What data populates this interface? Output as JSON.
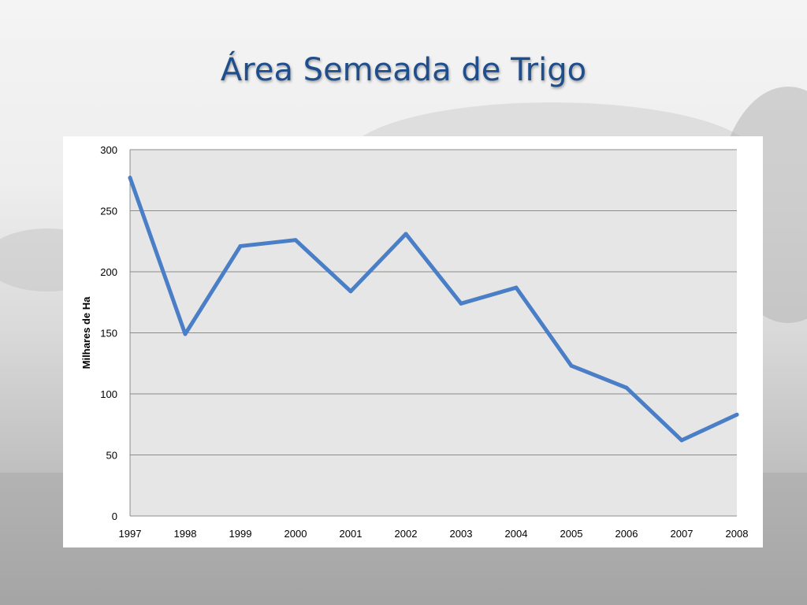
{
  "slide": {
    "title": "Área Semeada de Trigo"
  },
  "colors": {
    "title": "#1f4e8c",
    "series": "#4a7ec6",
    "plot_bg": "#e6e6e6",
    "grid": "#8c8c8c"
  },
  "chart_data": {
    "type": "line",
    "title": "",
    "xlabel": "",
    "ylabel": "Milhares de Ha",
    "ylim": [
      0,
      300
    ],
    "yticks": [
      0,
      50,
      100,
      150,
      200,
      250,
      300
    ],
    "grid": true,
    "legend": "none",
    "categories": [
      "1997",
      "1998",
      "1999",
      "2000",
      "2001",
      "2002",
      "2003",
      "2004",
      "2005",
      "2006",
      "2007",
      "2008"
    ],
    "series": [
      {
        "values": [
          277,
          149,
          221,
          226,
          184,
          231,
          174,
          187,
          123,
          105,
          62,
          83
        ]
      }
    ]
  }
}
